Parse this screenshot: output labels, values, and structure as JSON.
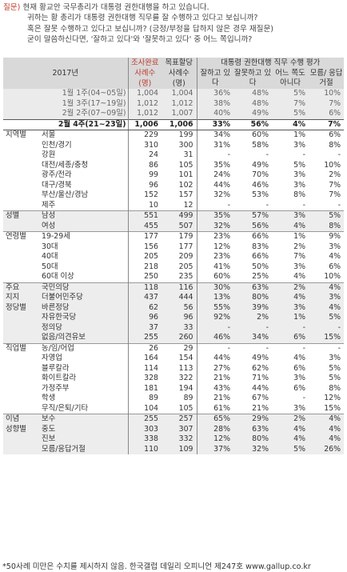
{
  "question": {
    "label": "질문)",
    "lines": [
      "현재 황교안 국무총리가 대통령 권한대행을 하고 있습니다.",
      "귀하는 황 총리가 대통령 권한대행 직무를 잘 수행하고 있다고 보십니까?",
      "혹은 잘못 수행하고 있다고 보십니까? (긍정/부정을 답하지 않은 경우 재질문)",
      "굳이 말씀하신다면, '잘하고 있다'와 '잘못하고 있다' 중 어느 쪽입니까?"
    ]
  },
  "header": {
    "year": "2017년",
    "survey_title": "조사완료",
    "survey_sub": "사례수",
    "survey_unit": "(명)",
    "target_title": "목표할당",
    "target_sub": "사례수",
    "target_unit": "(명)",
    "eval_title": "대통령 권한대행 직무 수행 평가",
    "cols": [
      "잘하고 있다",
      "잘못하고 있다",
      "어느 쪽도 아니다",
      "모름/ 응답거절"
    ]
  },
  "rows": [
    {
      "type": "prev",
      "label": "1월 1주(04~05일)",
      "c": [
        "1,004",
        "1,004",
        "36%",
        "48%",
        "5%",
        "10%"
      ]
    },
    {
      "type": "prev",
      "label": "1월 3주(17~19일)",
      "c": [
        "1,012",
        "1,012",
        "38%",
        "48%",
        "7%",
        "7%"
      ]
    },
    {
      "type": "prev",
      "label": "2월 2주(07~09일)",
      "c": [
        "1,012",
        "1,007",
        "40%",
        "49%",
        "5%",
        "6%"
      ]
    },
    {
      "type": "curr",
      "label": "2월 4주(21~23일)",
      "c": [
        "1,006",
        "1,006",
        "33%",
        "56%",
        "4%",
        "7%"
      ]
    },
    {
      "group": "지역별",
      "label": "서울",
      "c": [
        "229",
        "199",
        "34%",
        "60%",
        "1%",
        "6%"
      ]
    },
    {
      "label": "인천/경기",
      "c": [
        "310",
        "300",
        "31%",
        "58%",
        "3%",
        "8%"
      ]
    },
    {
      "label": "강원",
      "c": [
        "24",
        "31",
        "-",
        "-",
        "-",
        "-"
      ]
    },
    {
      "label": "대전/세종/충청",
      "c": [
        "86",
        "105",
        "35%",
        "49%",
        "5%",
        "10%"
      ]
    },
    {
      "label": "광주/전라",
      "c": [
        "99",
        "101",
        "24%",
        "70%",
        "3%",
        "2%"
      ]
    },
    {
      "label": "대구/경북",
      "c": [
        "96",
        "102",
        "44%",
        "46%",
        "3%",
        "7%"
      ]
    },
    {
      "label": "부산/울산/경남",
      "c": [
        "152",
        "157",
        "32%",
        "53%",
        "8%",
        "7%"
      ]
    },
    {
      "label": "제주",
      "c": [
        "10",
        "12",
        "-",
        "-",
        "-",
        "-"
      ]
    },
    {
      "group": "성별",
      "label": "남성",
      "sep": true,
      "band": true,
      "c": [
        "551",
        "499",
        "35%",
        "57%",
        "3%",
        "5%"
      ]
    },
    {
      "label": "여성",
      "band": true,
      "c": [
        "455",
        "507",
        "32%",
        "56%",
        "4%",
        "8%"
      ]
    },
    {
      "group": "연령별",
      "label": "19-29세",
      "sep": true,
      "c": [
        "177",
        "179",
        "23%",
        "66%",
        "1%",
        "9%"
      ]
    },
    {
      "label": "30대",
      "c": [
        "156",
        "177",
        "12%",
        "83%",
        "2%",
        "3%"
      ]
    },
    {
      "label": "40대",
      "c": [
        "205",
        "209",
        "23%",
        "66%",
        "7%",
        "4%"
      ]
    },
    {
      "label": "50대",
      "c": [
        "218",
        "205",
        "41%",
        "50%",
        "3%",
        "6%"
      ]
    },
    {
      "label": "60대 이상",
      "c": [
        "250",
        "235",
        "60%",
        "25%",
        "4%",
        "10%"
      ]
    },
    {
      "group": "주요",
      "label": "국민의당",
      "sep": true,
      "band": true,
      "c": [
        "118",
        "116",
        "30%",
        "63%",
        "2%",
        "4%"
      ]
    },
    {
      "group": "지지",
      "label": "더불어민주당",
      "band": true,
      "c": [
        "437",
        "444",
        "13%",
        "80%",
        "4%",
        "3%"
      ]
    },
    {
      "group": "정당별",
      "label": "바른정당",
      "band": true,
      "c": [
        "62",
        "56",
        "55%",
        "39%",
        "3%",
        "4%"
      ]
    },
    {
      "label": "자유한국당",
      "band": true,
      "c": [
        "96",
        "96",
        "92%",
        "2%",
        "1%",
        "5%"
      ]
    },
    {
      "label": "정의당",
      "band": true,
      "c": [
        "37",
        "33",
        "-",
        "-",
        "-",
        "-"
      ]
    },
    {
      "label": "없음/의견유보",
      "band": true,
      "c": [
        "255",
        "260",
        "46%",
        "34%",
        "6%",
        "15%"
      ]
    },
    {
      "group": "직업별",
      "label": "농/임/어업",
      "sep": true,
      "c": [
        "26",
        "29",
        "-",
        "-",
        "-",
        "-"
      ]
    },
    {
      "label": "자영업",
      "c": [
        "164",
        "154",
        "44%",
        "49%",
        "4%",
        "3%"
      ]
    },
    {
      "label": "블루칼라",
      "c": [
        "114",
        "113",
        "27%",
        "62%",
        "6%",
        "5%"
      ]
    },
    {
      "label": "화이트칼라",
      "c": [
        "328",
        "322",
        "21%",
        "71%",
        "3%",
        "5%"
      ]
    },
    {
      "label": "가정주부",
      "c": [
        "181",
        "194",
        "43%",
        "44%",
        "6%",
        "8%"
      ]
    },
    {
      "label": "학생",
      "c": [
        "89",
        "89",
        "21%",
        "67%",
        "-",
        "12%"
      ]
    },
    {
      "label": "무직/은퇴/기타",
      "c": [
        "104",
        "105",
        "61%",
        "21%",
        "3%",
        "15%"
      ]
    },
    {
      "group": "이념",
      "label": "보수",
      "sep": true,
      "band": true,
      "c": [
        "255",
        "257",
        "65%",
        "29%",
        "2%",
        "4%"
      ]
    },
    {
      "group": "성향별",
      "label": "중도",
      "band": true,
      "c": [
        "303",
        "307",
        "28%",
        "63%",
        "4%",
        "4%"
      ]
    },
    {
      "label": "진보",
      "band": true,
      "c": [
        "338",
        "332",
        "12%",
        "80%",
        "4%",
        "4%"
      ]
    },
    {
      "label": "모름/응답거절",
      "band": true,
      "c": [
        "110",
        "109",
        "37%",
        "32%",
        "5%",
        "26%"
      ]
    }
  ],
  "footer": "*50사례 미만은 수치를 제시하지 않음. 한국갤럽 데일리 오피니언 제247호 www.gallup.co.kr"
}
